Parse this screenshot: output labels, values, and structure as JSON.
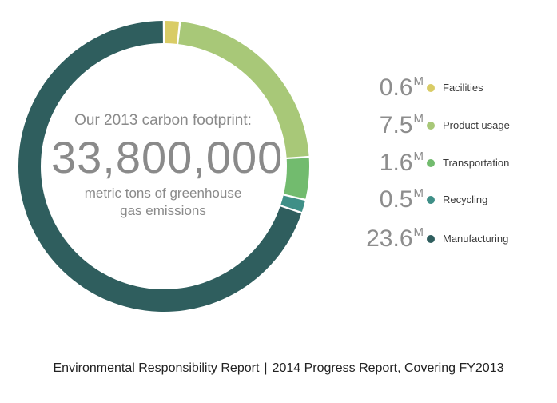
{
  "chart_data": {
    "type": "pie",
    "subtype": "donut",
    "title": "Our 2013 carbon footprint:",
    "total": "33,800,000",
    "total_caption": [
      "metric tons of greenhouse",
      "gas emissions"
    ],
    "unit": "M",
    "slices": [
      {
        "label": "Facilities",
        "display": "0.6",
        "value": 0.6,
        "color": "#d9cc66"
      },
      {
        "label": "Product usage",
        "display": "7.5",
        "value": 7.5,
        "color": "#a8c878"
      },
      {
        "label": "Transportation",
        "display": "1.6",
        "value": 1.6,
        "color": "#72bb6e"
      },
      {
        "label": "Recycling",
        "display": "0.5",
        "value": 0.5,
        "color": "#3f8f87"
      },
      {
        "label": "Manufacturing",
        "display": "23.6",
        "value": 23.6,
        "color": "#2f5e5e"
      }
    ]
  },
  "footer": {
    "left": "Environmental Responsibility Report",
    "separator": "|",
    "right": "2014 Progress Report, Covering FY2013"
  }
}
